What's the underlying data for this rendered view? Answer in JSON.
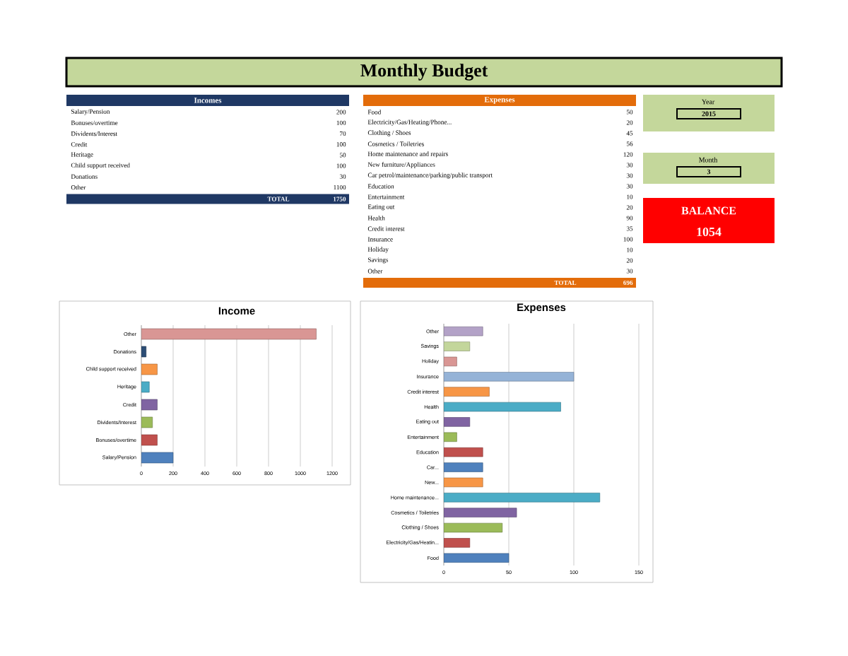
{
  "chart_data": [
    {
      "type": "other",
      "title": "Monthly Budget",
      "annotations": [
        "Year",
        "2015",
        "Month",
        "3",
        "BALANCE",
        "1054"
      ]
    },
    {
      "type": "other",
      "title": "Incomes",
      "categories": [
        "Salary/Pension",
        "Bonuses/overtime",
        "Dividents/Interest",
        "Credit",
        "Heritage",
        "Child support received",
        "Donations",
        "Other"
      ],
      "values": [
        200,
        100,
        70,
        100,
        50,
        100,
        30,
        1100
      ],
      "data_labels": true,
      "totals": [
        "1750"
      ],
      "annotations": [
        "TOTAL"
      ]
    },
    {
      "type": "other",
      "title": "Expenses",
      "categories": [
        "Food",
        "Electricity/Gas/Heating/Phone...",
        "Clothing / Shoes",
        "Cosmetics / Toiletries",
        "Home maintenance and repairs",
        "New furniture/Appliances",
        "Car petrol/maintenance/parking/public transport",
        "Education",
        "Entertainment",
        "Eating out",
        "Health",
        "Credit interest",
        "Insurance",
        "Holiday",
        "Savings",
        "Other"
      ],
      "values": [
        50,
        20,
        45,
        56,
        120,
        30,
        30,
        30,
        10,
        20,
        90,
        35,
        100,
        10,
        20,
        30
      ],
      "data_labels": true,
      "totals": [
        "696"
      ],
      "annotations": [
        "TOTAL"
      ]
    },
    {
      "type": "bar",
      "orientation": "horizontal",
      "title": "Income",
      "categories": [
        "Other",
        "Donations",
        "Child support received",
        "Heritage",
        "Credit",
        "Dividents/Interest",
        "Bonuses/overtime",
        "Salary/Pension"
      ],
      "values": [
        1100,
        30,
        100,
        50,
        100,
        70,
        100,
        200
      ],
      "colors": [
        "#d99694",
        "#2c4d75",
        "#f79646",
        "#4bacc6",
        "#8064a2",
        "#9bbb59",
        "#c0504d",
        "#4f81bd"
      ],
      "xlim": [
        0,
        1200
      ],
      "xticks": [
        0,
        200,
        400,
        600,
        800,
        1000,
        1200
      ],
      "grid": "x"
    },
    {
      "type": "bar",
      "orientation": "horizontal",
      "title": "Expenses",
      "categories": [
        "Other",
        "Savings",
        "Holiday",
        "Insurance",
        "Credit interest",
        "Health",
        "Eating out",
        "Entertainment",
        "Education",
        "Car...",
        "New...",
        "Home maintenance...",
        "Cosmetics / Toiletries",
        "Clothing / Shoes",
        "Electricity/Gas/Heatin...",
        "Food"
      ],
      "values": [
        30,
        20,
        10,
        100,
        35,
        90,
        20,
        10,
        30,
        30,
        30,
        120,
        56,
        45,
        20,
        50
      ],
      "colors": [
        "#b3a2c7",
        "#c3d69b",
        "#d99694",
        "#95b3d7",
        "#f79646",
        "#4bacc6",
        "#8064a2",
        "#9bbb59",
        "#c0504d",
        "#4f81bd",
        "#f79646",
        "#4bacc6",
        "#8064a2",
        "#9bbb59",
        "#c0504d",
        "#4f81bd"
      ],
      "xlim": [
        0,
        150
      ],
      "xticks": [
        0,
        50,
        100,
        150
      ],
      "grid": "x"
    }
  ]
}
